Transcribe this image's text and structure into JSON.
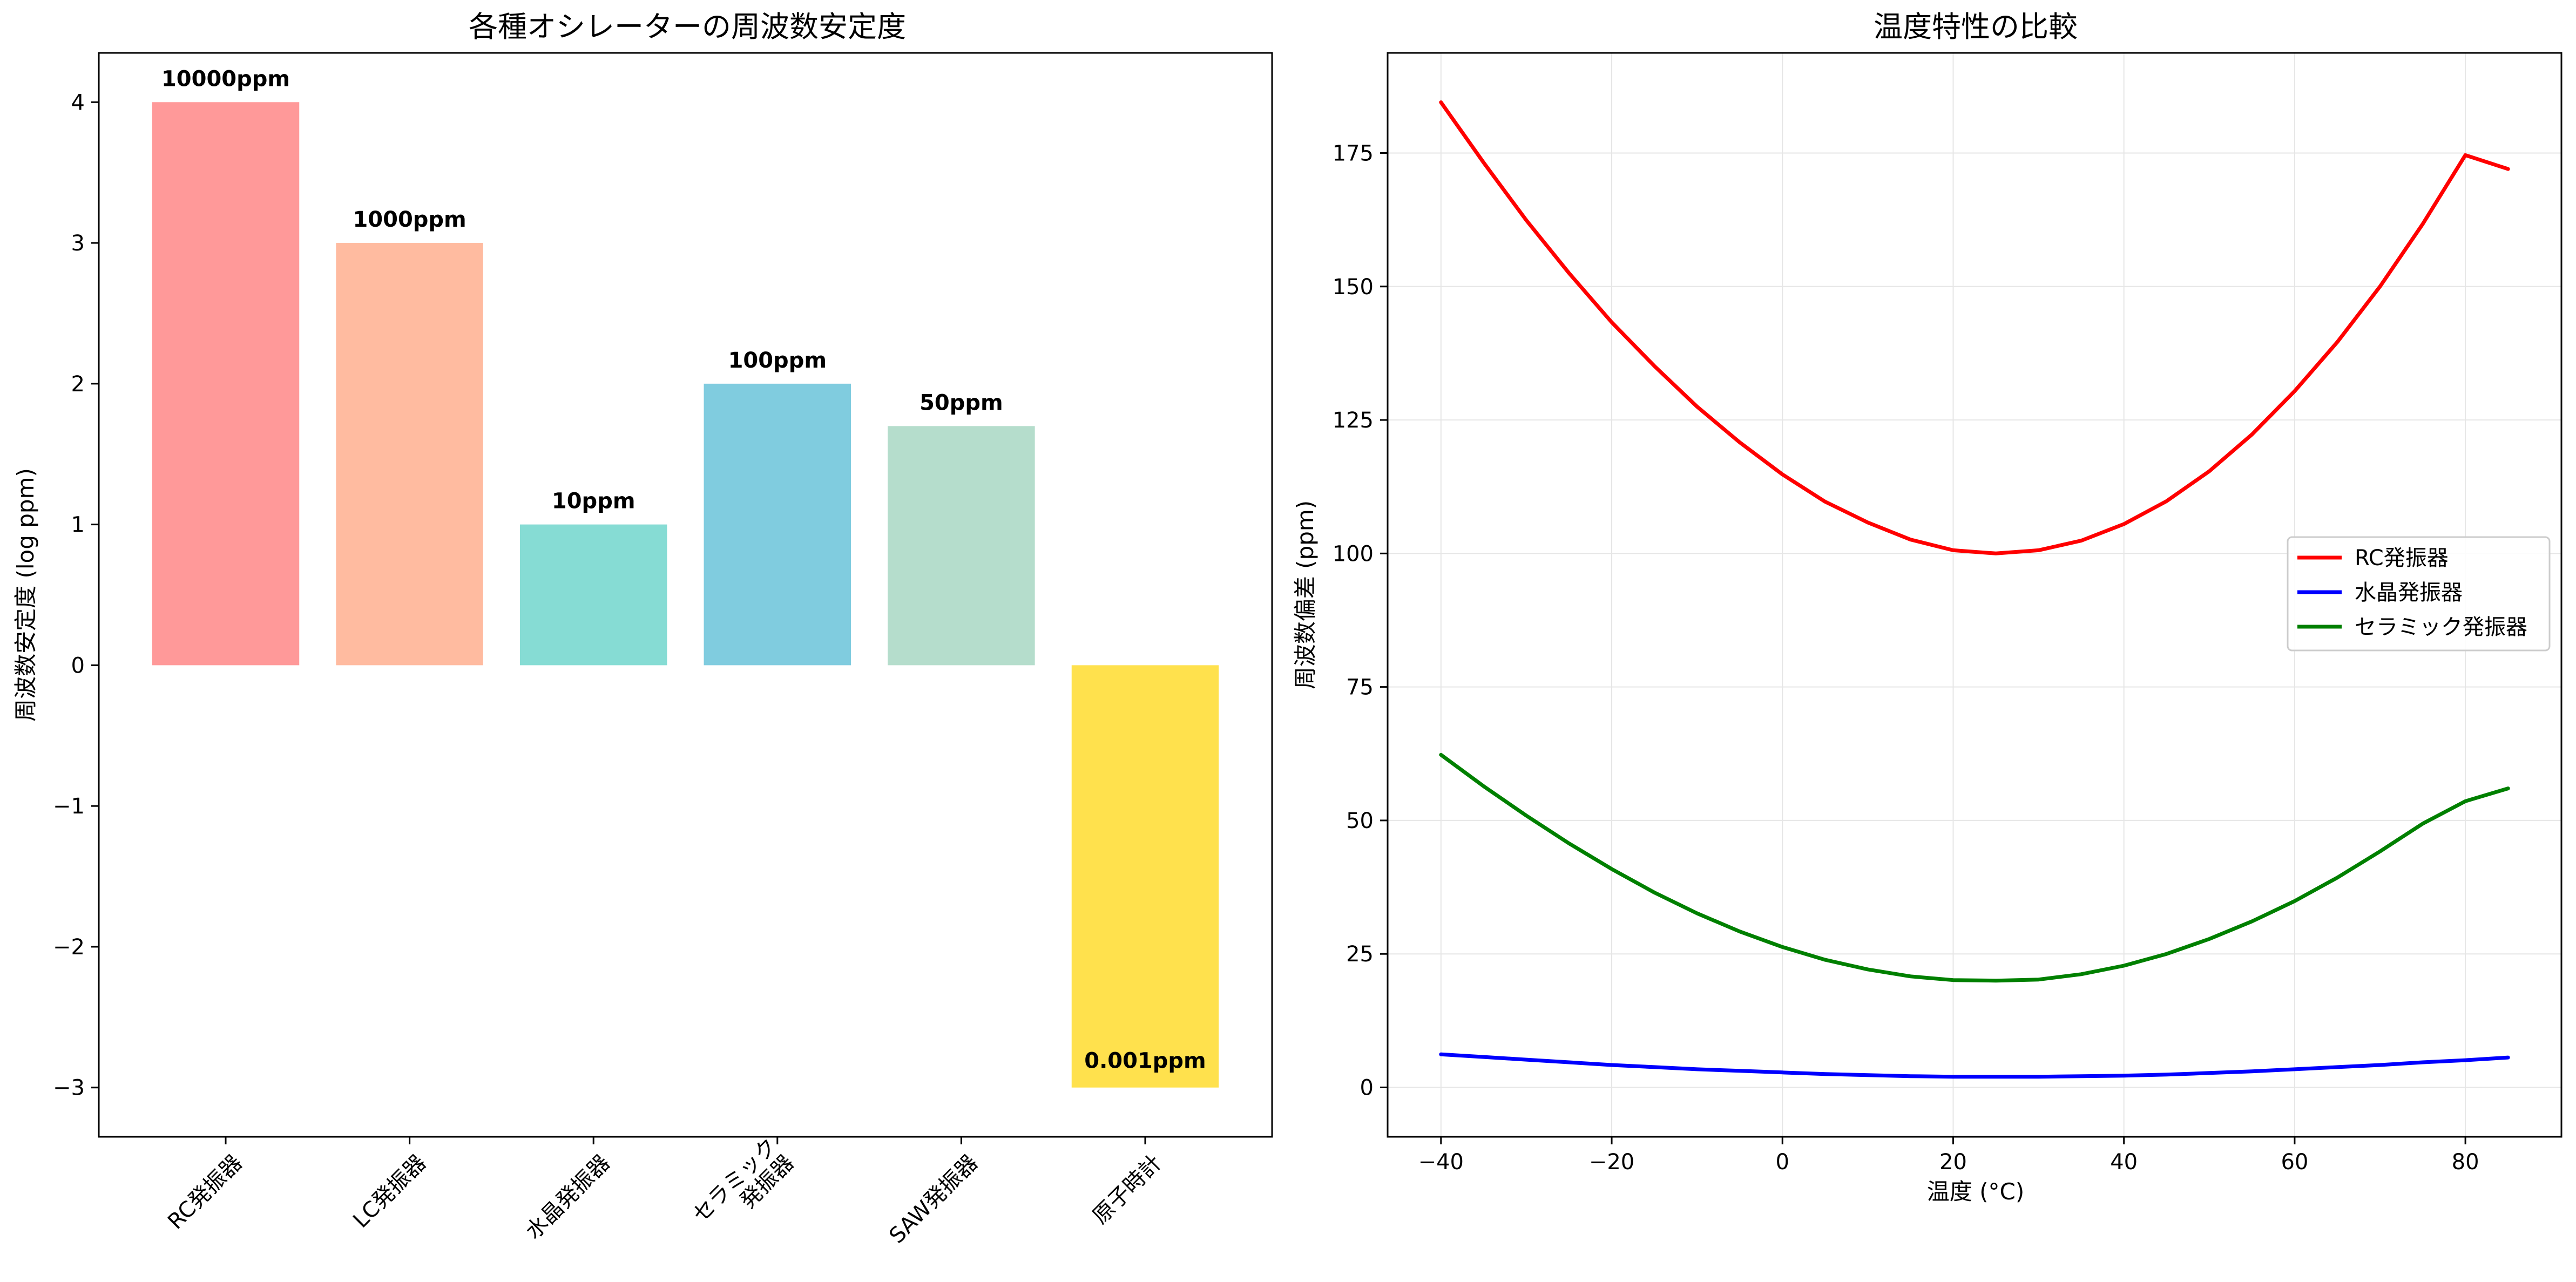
{
  "chart_data": [
    {
      "type": "bar",
      "title": "各種オシレーターの周波数安定度",
      "xlabel": "",
      "ylabel": "周波数安定度 (log ppm)",
      "ylim": [
        -3.35,
        4.35
      ],
      "yticks": [
        4,
        3,
        2,
        1,
        0,
        -1,
        -2,
        -3
      ],
      "ytick_labels": [
        "4",
        "3",
        "2",
        "1",
        "0",
        "−1",
        "−2",
        "−3"
      ],
      "categories": [
        "RC発振器",
        "LC発振器",
        "水晶発振器",
        "セラミック\n発振器",
        "SAW発振器",
        "原子時計"
      ],
      "values": [
        4,
        3,
        1,
        2,
        1.699,
        -3
      ],
      "data_labels": [
        "10000ppm",
        "1000ppm",
        "10ppm",
        "100ppm",
        "50ppm",
        "0.001ppm"
      ],
      "colors": [
        "#ff9999",
        "#ffbba0",
        "#86dcd4",
        "#80ccdf",
        "#b5ddcc",
        "#ffe14d"
      ],
      "grid": false
    },
    {
      "type": "line",
      "title": "温度特性の比較",
      "xlabel": "温度 (°C)",
      "ylabel": "周波数偏差 (ppm)",
      "xlim": [
        -46.25,
        91.25
      ],
      "ylim": [
        -9.25,
        193.75
      ],
      "xticks": [
        -40,
        -20,
        0,
        20,
        40,
        60,
        80
      ],
      "xtick_labels": [
        "−40",
        "−20",
        "0",
        "20",
        "40",
        "60",
        "80"
      ],
      "yticks": [
        0,
        25,
        50,
        75,
        100,
        125,
        150,
        175
      ],
      "ytick_labels": [
        "0",
        "25",
        "50",
        "75",
        "100",
        "125",
        "150",
        "175"
      ],
      "x": [
        -40,
        -35,
        -30,
        -25,
        -20,
        -15,
        -10,
        -5,
        0,
        5,
        10,
        15,
        20,
        25,
        30,
        35,
        40,
        45,
        50,
        55,
        60,
        65,
        70,
        75,
        80,
        85
      ],
      "series": [
        {
          "name": "RC発振器",
          "color": "#ff0000",
          "values": [
            184.5,
            173.2,
            162.4,
            152.5,
            143.3,
            135.1,
            127.5,
            120.8,
            114.8,
            109.7,
            105.8,
            102.6,
            100.6,
            100.0,
            100.6,
            102.4,
            105.5,
            109.8,
            115.4,
            122.3,
            130.4,
            139.6,
            150.0,
            161.7,
            174.6,
            172.0
          ]
        },
        {
          "name": "水晶発振器",
          "color": "#0000ff",
          "values": [
            6.2,
            5.7,
            5.2,
            4.7,
            4.2,
            3.8,
            3.4,
            3.1,
            2.8,
            2.5,
            2.3,
            2.1,
            2.0,
            2.0,
            2.0,
            2.1,
            2.2,
            2.4,
            2.7,
            3.0,
            3.4,
            3.8,
            4.2,
            4.7,
            5.1,
            5.6
          ]
        },
        {
          "name": "セラミック発振器",
          "color": "#008000",
          "values": [
            62.3,
            56.4,
            50.9,
            45.7,
            40.9,
            36.5,
            32.6,
            29.2,
            26.3,
            23.9,
            22.1,
            20.8,
            20.1,
            20.0,
            20.2,
            21.2,
            22.8,
            25.0,
            27.8,
            31.1,
            34.9,
            39.3,
            44.2,
            49.4,
            53.6,
            56.0
          ]
        }
      ],
      "legend_position": "center-right",
      "grid": true
    }
  ]
}
